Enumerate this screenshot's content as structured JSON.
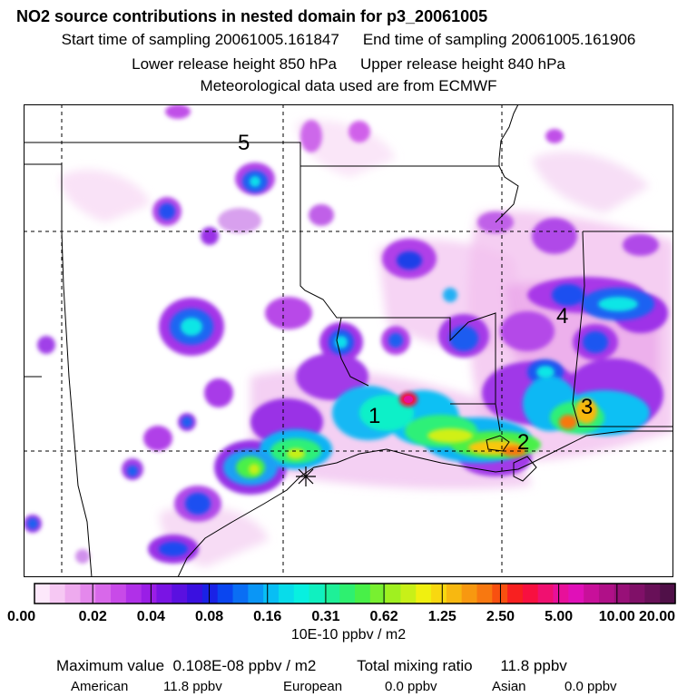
{
  "header": {
    "title": "NO2 source contributions in nested domain for p3_20061005",
    "start_label": "Start time of sampling 20061005.161847",
    "end_label": "End time of sampling 20061005.161906",
    "lower_label": "Lower release height  850 hPa",
    "upper_label": "Upper release height  840 hPa",
    "met_label": "Meteorological data used are from ECMWF"
  },
  "map": {
    "region_labels": [
      {
        "id": "1",
        "label": "1"
      },
      {
        "id": "2",
        "label": "2"
      },
      {
        "id": "3",
        "label": "3"
      },
      {
        "id": "4",
        "label": "4"
      },
      {
        "id": "5",
        "label": "5"
      }
    ],
    "release_marker": "star-icon"
  },
  "colorbar": {
    "tick_labels": [
      "0.00",
      "0.02",
      "0.04",
      "0.08",
      "0.16",
      "0.31",
      "0.62",
      "1.25",
      "2.50",
      "5.00",
      "10.00",
      "20.00"
    ],
    "colors": [
      "#fde8fb",
      "#f6c8f3",
      "#eeaaee",
      "#e488ec",
      "#d868ea",
      "#c84ae8",
      "#b030e8",
      "#9a1ee6",
      "#7a14e4",
      "#5a10e0",
      "#3a10e0",
      "#1a22e6",
      "#0a46f0",
      "#0a6ef4",
      "#0a96f6",
      "#08bef4",
      "#08dcea",
      "#08f0e0",
      "#10f0c0",
      "#1ef098",
      "#2ef070",
      "#48f048",
      "#78f030",
      "#a0f020",
      "#c8f018",
      "#f0f010",
      "#f8d810",
      "#f8b810",
      "#f89810",
      "#f87810",
      "#f85010",
      "#f82020",
      "#f81040",
      "#f01070",
      "#e8109a",
      "#e010b8",
      "#c8109a",
      "#b01088",
      "#981078",
      "#801068",
      "#681058",
      "#501048"
    ],
    "units": "10E-10 ppbv / m2"
  },
  "summary": {
    "max_label": "Maximum value",
    "max_value": "0.108E-08 ppbv / m2",
    "total_label": "Total mixing ratio",
    "total_value": "11.8 ppbv",
    "origins": [
      {
        "name": "American",
        "value": "11.8 ppbv"
      },
      {
        "name": "European",
        "value": "0.0 ppbv"
      },
      {
        "name": "Asian",
        "value": "0.0 ppbv"
      }
    ]
  }
}
